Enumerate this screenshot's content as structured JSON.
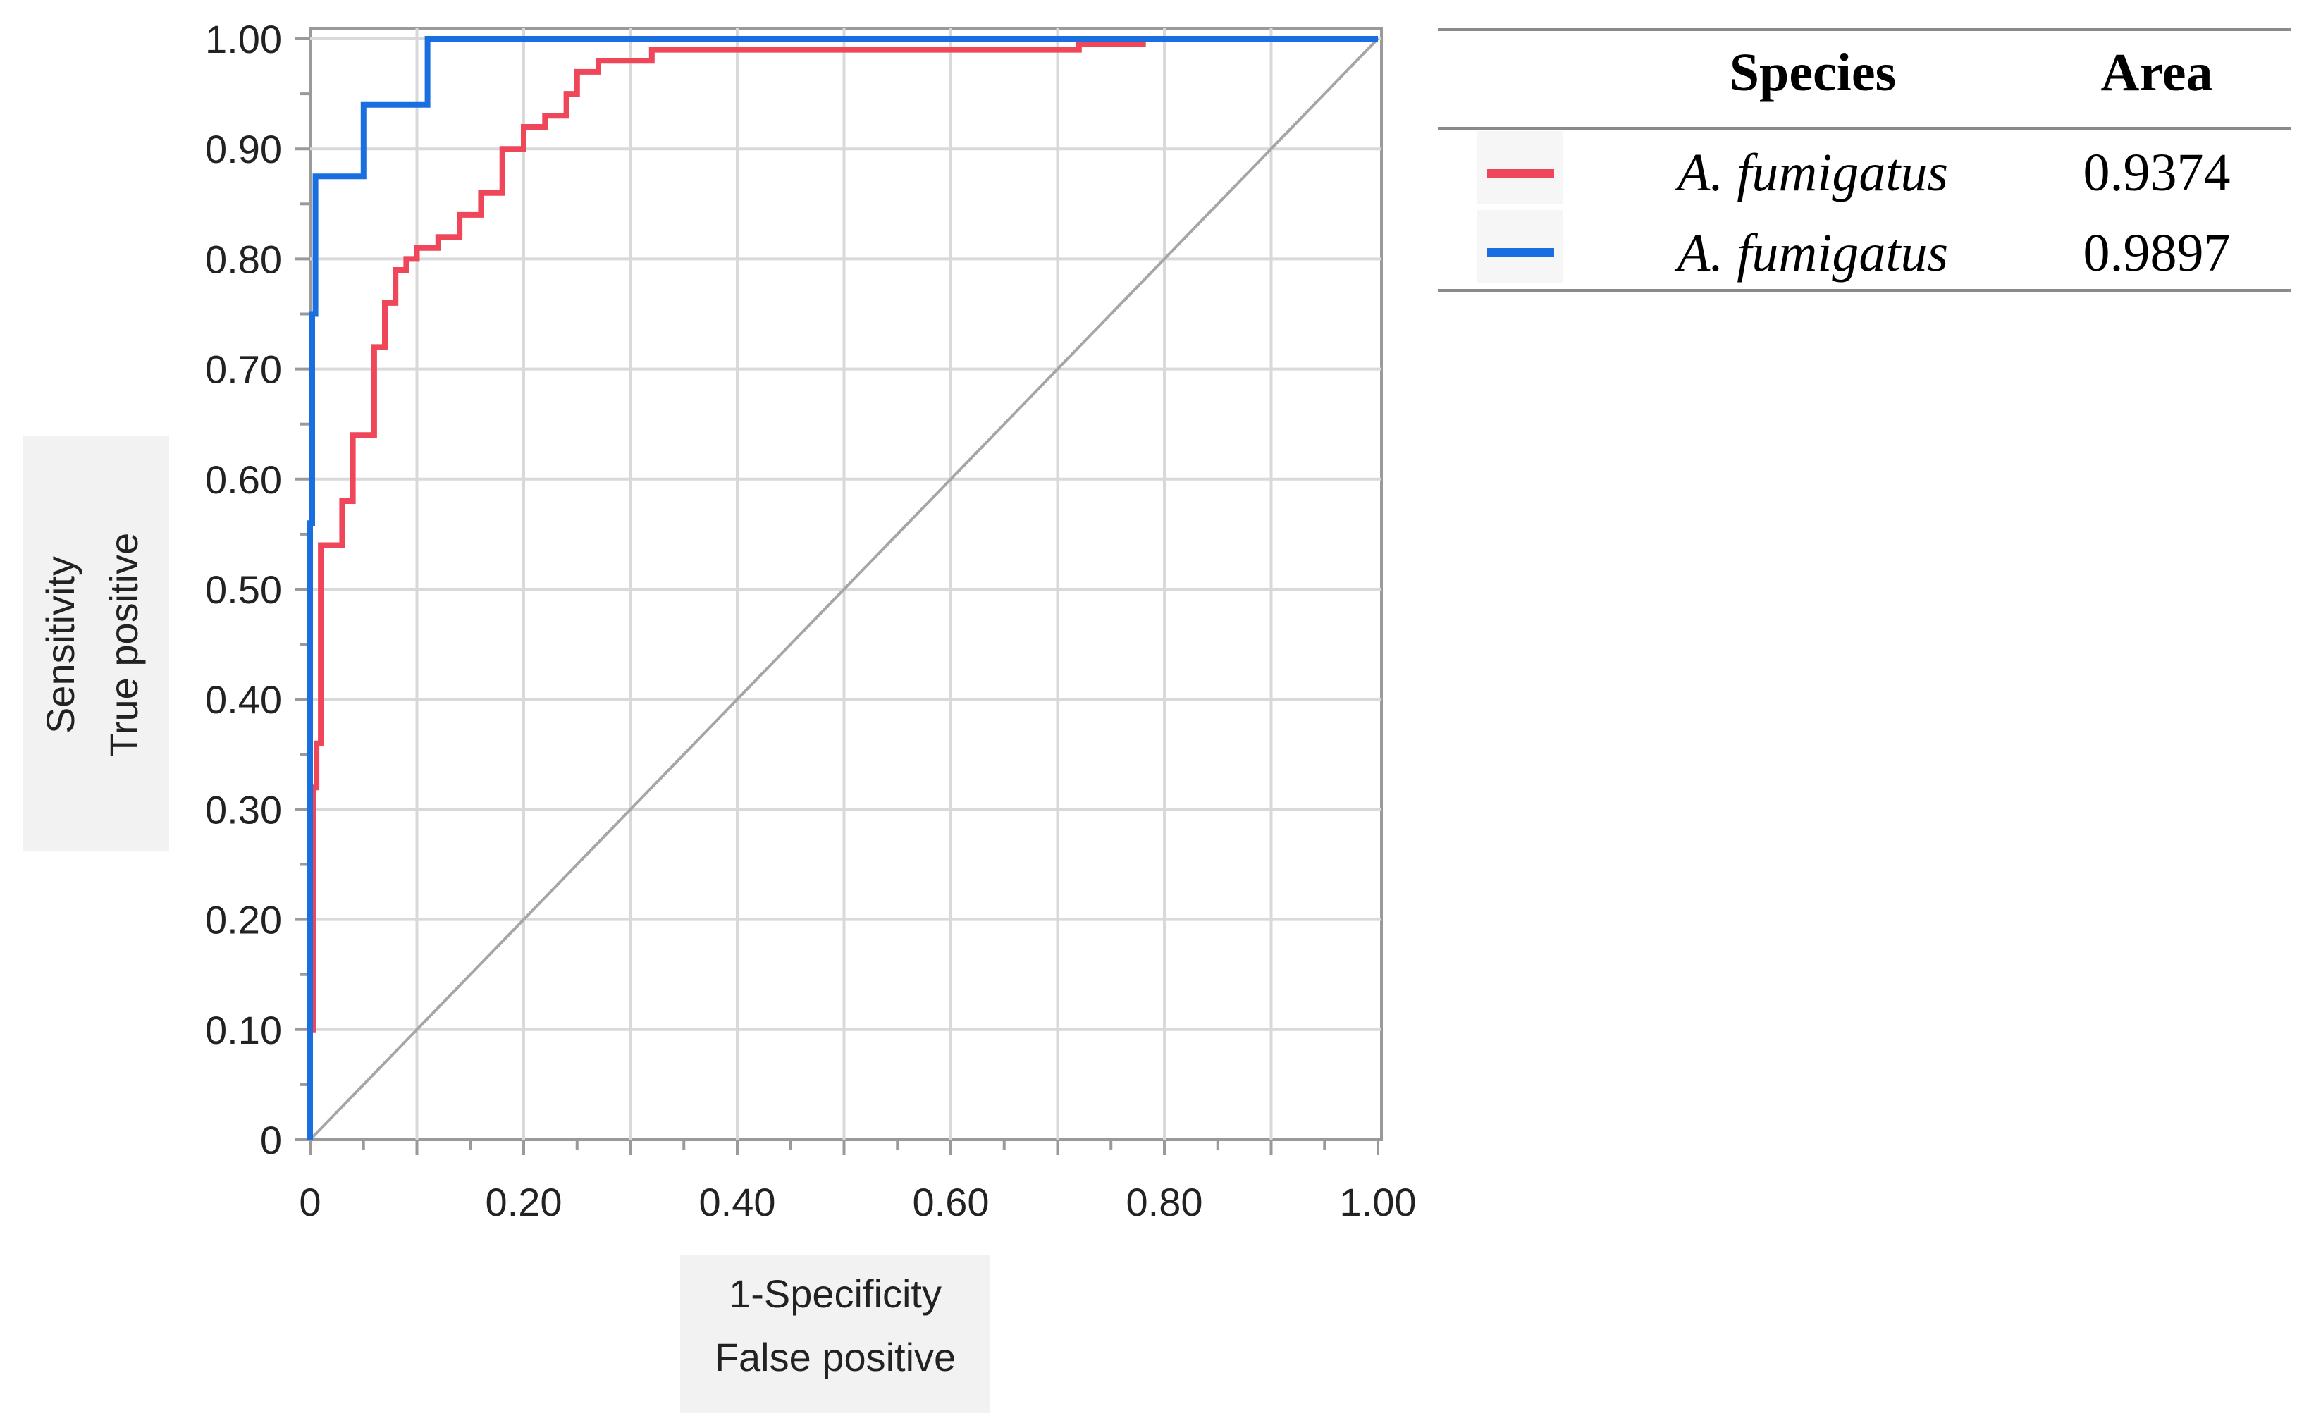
{
  "chart_data": {
    "type": "line",
    "title": "",
    "xlabel": [
      "1-Specificity",
      "False positive"
    ],
    "ylabel": [
      "Sensitivity",
      "True positive"
    ],
    "xlim": [
      0,
      1
    ],
    "ylim": [
      0,
      1
    ],
    "x_ticks": [
      "0",
      "0.20",
      "0.40",
      "0.60",
      "0.80",
      "1.00"
    ],
    "y_ticks": [
      "0",
      "0.10",
      "0.20",
      "0.30",
      "0.40",
      "0.50",
      "0.60",
      "0.70",
      "0.80",
      "0.90",
      "1.00"
    ],
    "grid": true,
    "reference_line": {
      "x": [
        0,
        1
      ],
      "y": [
        0,
        1
      ],
      "color": "#a6a6a6"
    },
    "legend": {
      "placement": "right",
      "header_species": "Species",
      "header_area": "Area"
    },
    "series": [
      {
        "name": "A. fumigatus",
        "area": "0.9374",
        "color": "#f0465a",
        "x": [
          0,
          0,
          0.003,
          0.003,
          0.006,
          0.006,
          0.01,
          0.01,
          0.03,
          0.03,
          0.04,
          0.04,
          0.06,
          0.06,
          0.07,
          0.07,
          0.08,
          0.08,
          0.09,
          0.09,
          0.1,
          0.1,
          0.12,
          0.12,
          0.14,
          0.14,
          0.16,
          0.16,
          0.18,
          0.18,
          0.2,
          0.2,
          0.22,
          0.22,
          0.24,
          0.24,
          0.25,
          0.25,
          0.27,
          0.27,
          0.32,
          0.32,
          0.45,
          0.6,
          0.72,
          0.72,
          0.78,
          0.78,
          1.0
        ],
        "y": [
          0,
          0.1,
          0.1,
          0.32,
          0.32,
          0.36,
          0.36,
          0.54,
          0.54,
          0.58,
          0.58,
          0.64,
          0.64,
          0.72,
          0.72,
          0.76,
          0.76,
          0.79,
          0.79,
          0.8,
          0.8,
          0.81,
          0.81,
          0.82,
          0.82,
          0.84,
          0.84,
          0.86,
          0.86,
          0.9,
          0.9,
          0.92,
          0.92,
          0.93,
          0.93,
          0.95,
          0.95,
          0.97,
          0.97,
          0.98,
          0.98,
          0.99,
          0.99,
          0.99,
          0.99,
          0.995,
          0.995,
          1.0,
          1.0
        ]
      },
      {
        "name": "A. fumigatus",
        "area": "0.9897",
        "color": "#1a6fe0",
        "x": [
          0,
          0,
          0.002,
          0.002,
          0.005,
          0.005,
          0.05,
          0.05,
          0.11,
          0.11,
          1.0
        ],
        "y": [
          0,
          0.56,
          0.56,
          0.75,
          0.75,
          0.875,
          0.875,
          0.94,
          0.94,
          1.0,
          1.0
        ]
      }
    ]
  }
}
